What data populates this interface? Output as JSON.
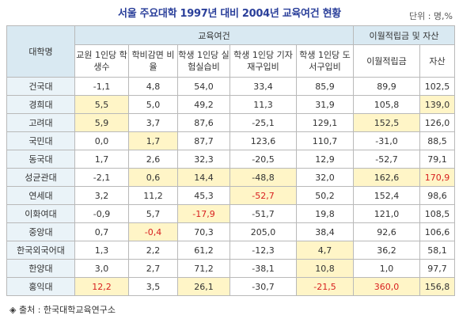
{
  "title": "서울 주요대학 1997년 대비 2004년 교육여건 현황",
  "unit": "단위 : 명,%",
  "headers": {
    "university": "대학명",
    "group1": "교육여건",
    "group2": "이월적립금 및 자산",
    "columns": [
      "교원 1인당 학생수",
      "학비감면 비율",
      "학생 1인당 실험실습비",
      "학생 1인당 기자재구입비",
      "학생 1인당 도서구입비",
      "이월적립금",
      "자산"
    ]
  },
  "rows": [
    {
      "name": "건국대",
      "values": [
        "-1,1",
        "4,8",
        "54,0",
        "33,4",
        "85,9",
        "89,9",
        "102,5"
      ],
      "highlight": [],
      "red": []
    },
    {
      "name": "경희대",
      "values": [
        "5,5",
        "5,0",
        "49,2",
        "11,3",
        "31,9",
        "105,8",
        "139,0"
      ],
      "highlight": [
        0,
        6
      ],
      "red": []
    },
    {
      "name": "고려대",
      "values": [
        "5,9",
        "3,7",
        "87,6",
        "-25,1",
        "129,1",
        "152,5",
        "126,0"
      ],
      "highlight": [
        0,
        5
      ],
      "red": []
    },
    {
      "name": "국민대",
      "values": [
        "0,0",
        "1,7",
        "87,7",
        "123,6",
        "110,7",
        "-31,0",
        "88,5"
      ],
      "highlight": [
        1
      ],
      "red": []
    },
    {
      "name": "동국대",
      "values": [
        "1,7",
        "2,6",
        "32,3",
        "-20,5",
        "12,9",
        "-52,7",
        "79,1"
      ],
      "highlight": [],
      "red": []
    },
    {
      "name": "성균관대",
      "values": [
        "-2,1",
        "0,6",
        "14,4",
        "-48,8",
        "32,0",
        "162,6",
        "170,9"
      ],
      "highlight": [
        1,
        2,
        3,
        5,
        6
      ],
      "red": [
        6
      ]
    },
    {
      "name": "연세대",
      "values": [
        "3,2",
        "11,2",
        "45,3",
        "-52,7",
        "50,2",
        "152,4",
        "98,6"
      ],
      "highlight": [
        3
      ],
      "red": [
        3
      ]
    },
    {
      "name": "이화여대",
      "values": [
        "-0,9",
        "5,7",
        "-17,9",
        "-51,7",
        "19,8",
        "121,0",
        "108,5"
      ],
      "highlight": [
        2
      ],
      "red": [
        2
      ]
    },
    {
      "name": "중앙대",
      "values": [
        "0,7",
        "-0,4",
        "70,3",
        "205,0",
        "38,4",
        "92,6",
        "106,6"
      ],
      "highlight": [
        1
      ],
      "red": [
        1
      ]
    },
    {
      "name": "한국외국어대",
      "values": [
        "1,3",
        "2,2",
        "61,2",
        "-12,3",
        "4,7",
        "36,2",
        "58,1"
      ],
      "highlight": [
        4
      ],
      "red": []
    },
    {
      "name": "한양대",
      "values": [
        "3,0",
        "2,7",
        "71,2",
        "-38,1",
        "10,8",
        "1,0",
        "97,7"
      ],
      "highlight": [
        4
      ],
      "red": []
    },
    {
      "name": "홍익대",
      "values": [
        "12,2",
        "3,5",
        "26,1",
        "-30,7",
        "-21,5",
        "360,0",
        "156,8"
      ],
      "highlight": [
        0,
        2,
        4,
        5,
        6
      ],
      "red": [
        0,
        4,
        5
      ]
    }
  ],
  "source": "◈ 출처 : 한국대학교육연구소"
}
